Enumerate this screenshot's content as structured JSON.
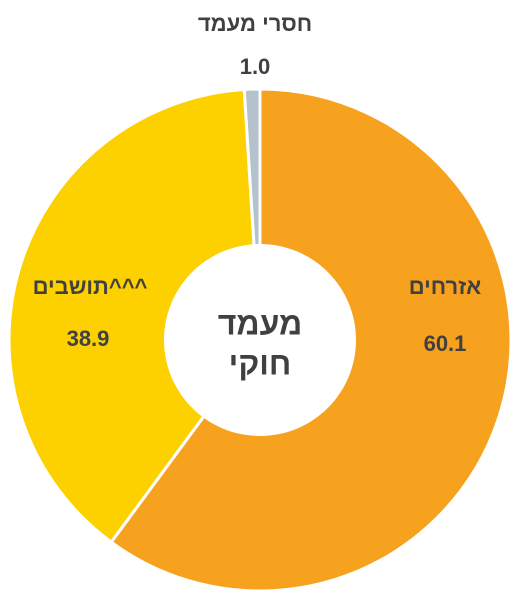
{
  "chart_data": {
    "type": "donut",
    "categories": [
      "אזרחים",
      "תושבים^^^",
      "חסרי מעמד"
    ],
    "values": [
      60.1,
      38.9,
      1.0
    ],
    "value_labels": [
      "60.1",
      "38.9",
      "1.0"
    ],
    "colors": [
      "#F7A21E",
      "#FDD000",
      "#B4C2CB"
    ],
    "center_label": [
      "מעמד",
      "חוקי"
    ]
  }
}
